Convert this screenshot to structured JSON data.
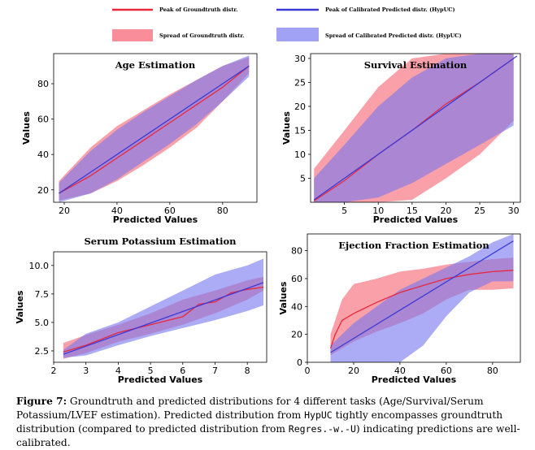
{
  "legend": {
    "entries": [
      {
        "label": "Peak of Groundtruth distr.",
        "kind": "line",
        "color": "#e8283c"
      },
      {
        "label": "Spread of Groundtruth distr.",
        "kind": "patch",
        "color": "#f8717f"
      },
      {
        "label": "Peak of Calibrated Predicted distr. (HypUC)",
        "kind": "line",
        "color": "#3a3ad8"
      },
      {
        "label": "Spread of Calibrated Predicted distr. (HypUC)",
        "kind": "patch",
        "color": "#8a8af4"
      }
    ]
  },
  "colors": {
    "groundtruth_line": "#e8283c",
    "groundtruth_band": "#f5606f",
    "predicted_line": "#3a3ad8",
    "predicted_band": "#7474f0"
  },
  "chart_data": [
    {
      "type": "area",
      "title": "Age Estimation",
      "xlabel": "Predicted Values",
      "ylabel": "Values",
      "xlim": [
        16,
        93
      ],
      "ylim": [
        13,
        97
      ],
      "xticks": [
        "20",
        "40",
        "60",
        "80"
      ],
      "yticks": [
        "20",
        "40",
        "60",
        "80"
      ],
      "grid": false,
      "series": [
        {
          "name": "Peak of Groundtruth distr.",
          "role": "peak",
          "x": [
            18,
            30,
            40,
            50,
            60,
            70,
            80,
            90
          ],
          "y": [
            18,
            28,
            38,
            48,
            58,
            68,
            78,
            90
          ]
        },
        {
          "name": "Spread of Groundtruth distr.",
          "role": "band",
          "x": [
            18,
            30,
            40,
            50,
            60,
            70,
            80,
            90
          ],
          "lower": [
            14,
            18,
            25,
            34,
            44,
            55,
            70,
            86
          ],
          "upper": [
            25,
            44,
            56,
            65,
            74,
            82,
            90,
            95
          ]
        },
        {
          "name": "Peak of Calibrated Predicted distr. (HypUC)",
          "role": "peak",
          "x": [
            18,
            90
          ],
          "y": [
            18,
            90
          ]
        },
        {
          "name": "Spread of Calibrated Predicted distr. (HypUC)",
          "role": "band",
          "x": [
            18,
            30,
            40,
            50,
            60,
            70,
            80,
            90
          ],
          "lower": [
            13,
            18,
            26,
            36,
            46,
            57,
            70,
            84
          ],
          "upper": [
            24,
            42,
            54,
            64,
            73,
            82,
            90,
            96
          ]
        }
      ]
    },
    {
      "type": "area",
      "title": "Survival Estimation",
      "xlabel": "Predicted Values",
      "ylabel": "Values",
      "xlim": [
        0,
        31
      ],
      "ylim": [
        0,
        31
      ],
      "xticks": [
        "5",
        "10",
        "15",
        "20",
        "25",
        "30"
      ],
      "yticks": [
        "5",
        "10",
        "15",
        "20",
        "25",
        "30"
      ],
      "grid": false,
      "series": [
        {
          "name": "Peak of Groundtruth distr.",
          "role": "peak",
          "x": [
            0.5,
            5,
            10,
            15,
            20,
            25,
            30
          ],
          "y": [
            0.3,
            4.5,
            10,
            15,
            20.5,
            25,
            30
          ]
        },
        {
          "name": "Spread of Groundtruth distr.",
          "role": "band",
          "x": [
            0.5,
            5,
            10,
            15,
            20,
            25,
            30
          ],
          "lower": [
            0,
            0,
            0,
            0.5,
            5,
            10,
            17
          ],
          "upper": [
            7,
            15,
            24,
            30,
            31,
            31,
            31
          ]
        },
        {
          "name": "Peak of Calibrated Predicted distr. (HypUC)",
          "role": "peak",
          "x": [
            0.5,
            30.5
          ],
          "y": [
            0.5,
            30.5
          ]
        },
        {
          "name": "Spread of Calibrated Predicted distr. (HypUC)",
          "role": "band",
          "x": [
            0.5,
            5,
            10,
            15,
            20,
            25,
            30
          ],
          "lower": [
            0,
            0,
            1,
            4,
            8,
            12,
            16
          ],
          "upper": [
            5,
            12,
            20,
            26,
            30,
            31,
            31
          ]
        }
      ]
    },
    {
      "type": "area",
      "title": "Serum Potassium Estimation",
      "xlabel": "Predicted Values",
      "ylabel": "Values",
      "xlim": [
        2,
        8.6
      ],
      "ylim": [
        1.5,
        11.2
      ],
      "xticks": [
        "2",
        "3",
        "4",
        "5",
        "6",
        "7",
        "8"
      ],
      "yticks": [
        "2.5",
        "5.0",
        "7.5",
        "10.0"
      ],
      "grid": false,
      "series": [
        {
          "name": "Peak of Groundtruth distr.",
          "role": "peak",
          "x": [
            2.3,
            3,
            4,
            5,
            6,
            6.5,
            7,
            7.5,
            8,
            8.5
          ],
          "y": [
            2.4,
            3.0,
            4.1,
            4.8,
            5.5,
            6.6,
            6.8,
            7.6,
            7.9,
            8.1
          ]
        },
        {
          "name": "Spread of Groundtruth distr.",
          "role": "band",
          "x": [
            2.3,
            3,
            4,
            5,
            6,
            7,
            8,
            8.5
          ],
          "lower": [
            1.8,
            2.3,
            3.3,
            4.0,
            4.8,
            5.8,
            7.0,
            7.8
          ],
          "upper": [
            3.2,
            3.9,
            4.8,
            5.8,
            7.0,
            7.8,
            8.7,
            9.0
          ]
        },
        {
          "name": "Peak of Calibrated Predicted distr. (HypUC)",
          "role": "peak",
          "x": [
            2.3,
            8.5
          ],
          "y": [
            2.2,
            8.5
          ]
        },
        {
          "name": "Spread of Calibrated Predicted distr. (HypUC)",
          "role": "band",
          "x": [
            2.3,
            3,
            4,
            5,
            6,
            7,
            8,
            8.5
          ],
          "lower": [
            1.9,
            2.1,
            3.0,
            3.8,
            4.5,
            5.2,
            6.0,
            6.5
          ],
          "upper": [
            2.6,
            4.0,
            5.0,
            6.4,
            7.8,
            9.2,
            10.0,
            10.6
          ]
        }
      ]
    },
    {
      "type": "area",
      "title": "Ejection Fraction Estimation",
      "xlabel": "Predicted Values",
      "ylabel": "Values",
      "xlim": [
        0,
        92
      ],
      "ylim": [
        0,
        92
      ],
      "xticks": [
        "0",
        "20",
        "40",
        "60",
        "80"
      ],
      "yticks": [
        "0",
        "20",
        "40",
        "60",
        "80"
      ],
      "grid": false,
      "series": [
        {
          "name": "Peak of Groundtruth distr.",
          "role": "peak",
          "x": [
            10,
            12,
            15,
            20,
            30,
            40,
            50,
            60,
            70,
            80,
            89
          ],
          "y": [
            10,
            20,
            30,
            35,
            43,
            50,
            55,
            60,
            63,
            65,
            66
          ]
        },
        {
          "name": "Spread of Groundtruth distr.",
          "role": "band",
          "x": [
            10,
            15,
            20,
            30,
            40,
            50,
            60,
            70,
            80,
            89
          ],
          "lower": [
            5,
            10,
            15,
            22,
            28,
            35,
            45,
            52,
            52,
            53
          ],
          "upper": [
            20,
            45,
            56,
            60,
            65,
            67,
            70,
            72,
            74,
            75
          ]
        },
        {
          "name": "Peak of Calibrated Predicted distr. (HypUC)",
          "role": "peak",
          "x": [
            10,
            89
          ],
          "y": [
            7,
            87
          ]
        },
        {
          "name": "Spread of Calibrated Predicted distr. (HypUC)",
          "role": "band",
          "x": [
            10,
            20,
            30,
            40,
            50,
            60,
            70,
            80,
            89
          ],
          "lower": [
            0,
            0,
            0,
            0,
            12,
            33,
            50,
            58,
            58
          ],
          "upper": [
            12,
            28,
            40,
            52,
            60,
            68,
            76,
            86,
            92
          ]
        }
      ]
    }
  ],
  "caption": {
    "label": "Figure 7:",
    "parts": [
      {
        "text": "  Groundtruth and predicted distributions for 4 different tasks (Age/Survival/Serum Potassium/LVEF estimation). Predicted distribution from ",
        "mono": false
      },
      {
        "text": "HypUC",
        "mono": true
      },
      {
        "text": " tightly encompasses groundtruth distribution (compared to predicted distribution from ",
        "mono": false
      },
      {
        "text": "Regres.-w.-U",
        "mono": true
      },
      {
        "text": ") indicating predictions are well-calibrated.",
        "mono": false
      }
    ]
  }
}
